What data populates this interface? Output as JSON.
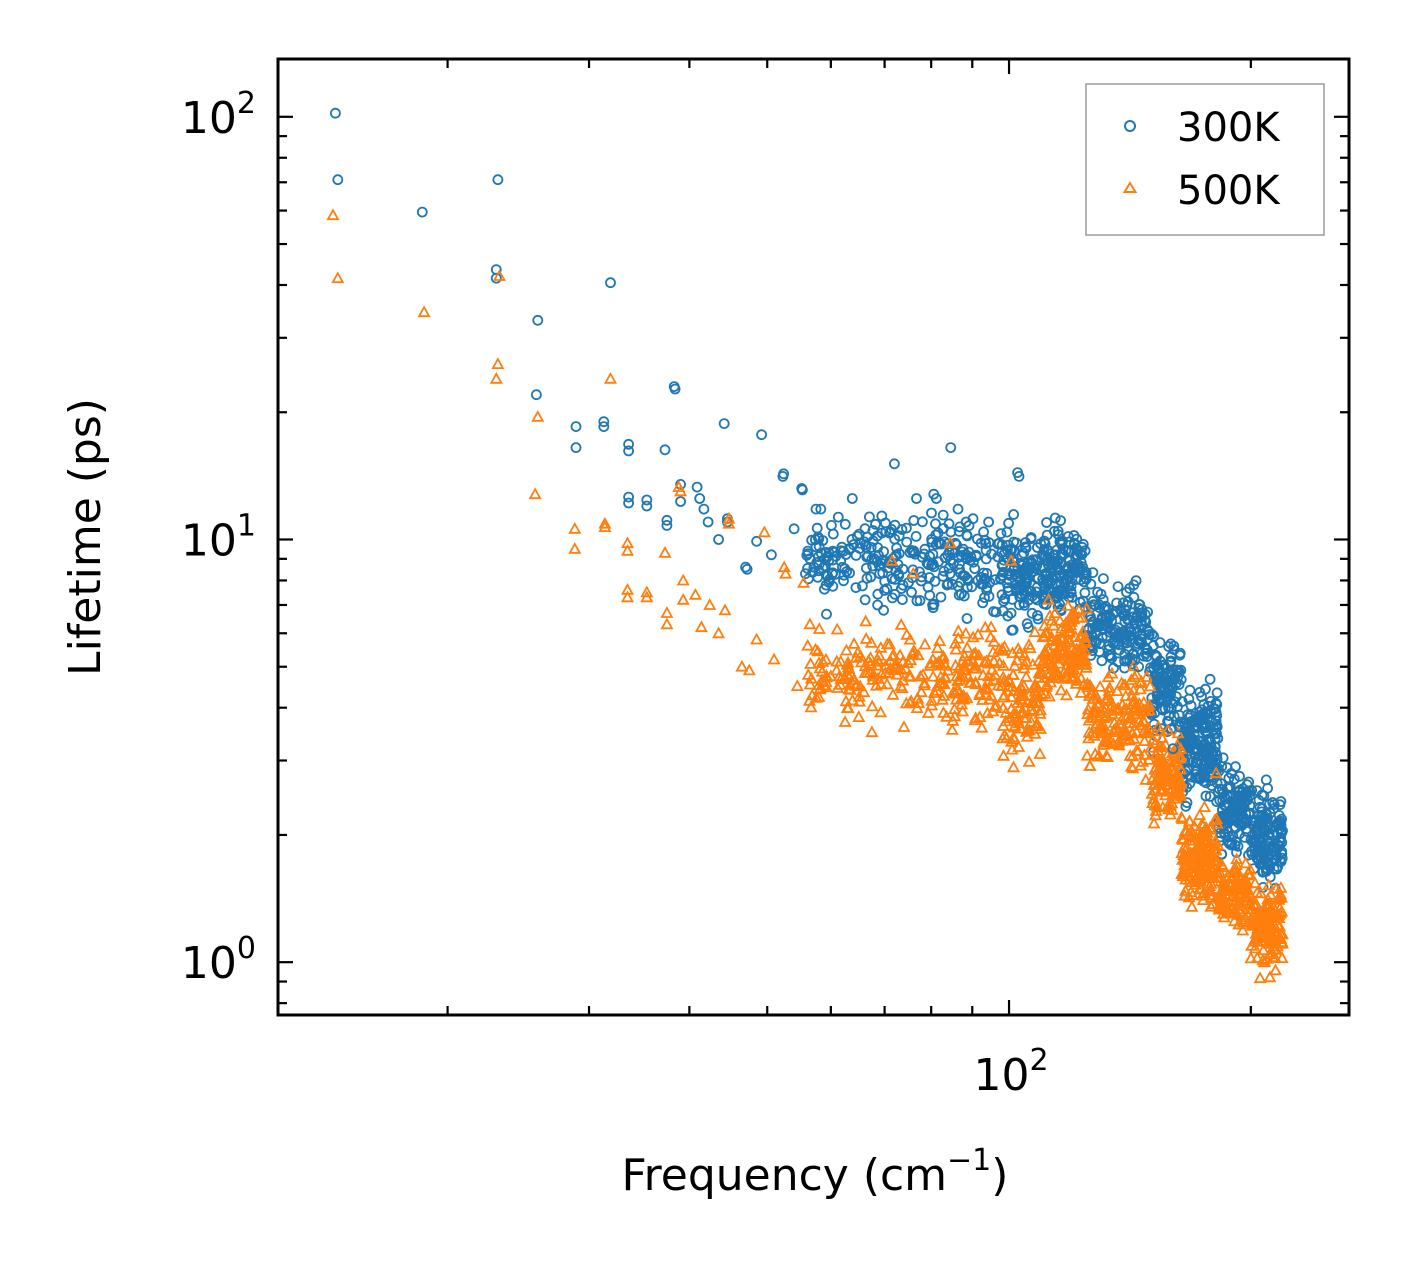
{
  "chart_data": {
    "type": "scatter",
    "xscale": "log",
    "yscale": "log",
    "xlim": [
      12.3,
      265
    ],
    "ylim": [
      0.75,
      137
    ],
    "xlabel": "Frequency (cm",
    "xlabel_sup": "−1",
    "xlabel_end": ")",
    "ylabel": "Lifetime (ps)",
    "x_major_ticks": [
      {
        "value": 100,
        "base": "10",
        "exp": "2"
      }
    ],
    "x_minor_ticks": [
      20,
      30,
      40,
      50,
      60,
      70,
      80,
      90,
      200
    ],
    "y_major_ticks": [
      {
        "value": 1,
        "base": "10",
        "exp": "0"
      },
      {
        "value": 10,
        "base": "10",
        "exp": "1"
      },
      {
        "value": 100,
        "base": "10",
        "exp": "2"
      }
    ],
    "y_minor_ticks": [
      0.8,
      0.9,
      2,
      3,
      4,
      5,
      6,
      7,
      8,
      9,
      20,
      30,
      40,
      50,
      60,
      70,
      80,
      90
    ],
    "legend": {
      "position": "upper right"
    },
    "series": [
      {
        "name": "300K",
        "marker": "circle",
        "color": "#1f77b4",
        "points": [
          [
            14.5,
            102
          ],
          [
            14.6,
            71
          ],
          [
            18.6,
            59.5
          ],
          [
            23.1,
            71
          ],
          [
            23.0,
            43.5
          ],
          [
            23.0,
            41.5
          ],
          [
            25.9,
            33
          ],
          [
            25.8,
            22
          ],
          [
            28.9,
            18.5
          ],
          [
            28.9,
            16.5
          ],
          [
            31.3,
            18.5
          ],
          [
            31.3,
            19
          ],
          [
            31.9,
            40.5
          ],
          [
            33.6,
            16.8
          ],
          [
            33.6,
            16.2
          ],
          [
            33.6,
            12.6
          ],
          [
            33.6,
            12.2
          ],
          [
            35.4,
            12.4
          ],
          [
            35.4,
            12
          ],
          [
            37.3,
            16.3
          ],
          [
            37.5,
            11.1
          ],
          [
            37.5,
            10.8
          ],
          [
            38.3,
            23
          ],
          [
            38.4,
            22.7
          ],
          [
            39.0,
            13.5
          ],
          [
            39.0,
            12.3
          ],
          [
            40.9,
            13.3
          ],
          [
            41.2,
            12.5
          ],
          [
            41.7,
            11.8
          ],
          [
            42.2,
            11
          ],
          [
            43.5,
            10
          ],
          [
            44.2,
            18.8
          ],
          [
            44.6,
            11.2
          ],
          [
            44.6,
            11.0
          ],
          [
            47.0,
            8.6
          ],
          [
            47.2,
            8.5
          ],
          [
            48.5,
            9.9
          ],
          [
            49.2,
            17.7
          ],
          [
            50.6,
            9.2
          ],
          [
            52.3,
            14.1
          ],
          [
            52.4,
            14.3
          ],
          [
            54.0,
            10.6
          ],
          [
            55.2,
            13.2
          ],
          [
            55.3,
            13.1
          ],
          [
            55.8,
            8.3
          ],
          [
            56.5,
            9.0
          ],
          [
            57.5,
            11.8
          ],
          [
            58.3,
            11.8
          ],
          [
            60.1,
            10.8
          ],
          [
            61.3,
            11.3
          ],
          [
            62.8,
            8.4
          ],
          [
            63.8,
            12.5
          ],
          [
            66.2,
            7.2
          ],
          [
            68.6,
            7.0
          ],
          [
            69.8,
            6.8
          ],
          [
            72.0,
            15.1
          ],
          [
            73.0,
            10.2
          ],
          [
            75.6,
            7.5
          ],
          [
            76.7,
            12.5
          ],
          [
            80.6,
            12.8
          ],
          [
            81.2,
            12.5
          ],
          [
            84.6,
            16.5
          ],
          [
            86.4,
            11.8
          ],
          [
            90.2,
            11.2
          ],
          [
            94.3,
            11
          ],
          [
            97.6,
            8.1
          ],
          [
            100.7,
            9.5
          ],
          [
            102.5,
            14.4
          ],
          [
            102.9,
            14.1
          ],
          [
            114.2,
            9.2
          ],
          [
            118,
            8.5
          ],
          [
            128,
            7.0
          ],
          [
            132,
            6.5
          ],
          [
            140,
            5.8
          ],
          [
            145,
            5.0
          ],
          [
            148,
            5.5
          ],
          [
            153,
            4.6
          ],
          [
            158,
            4.0
          ],
          [
            160,
            3.2
          ],
          [
            163,
            3.6
          ],
          [
            168,
            4.4
          ],
          [
            170,
            3.3
          ],
          [
            174,
            3.2
          ],
          [
            178,
            3.0
          ],
          [
            181,
            4.1
          ],
          [
            181,
            3.9
          ],
          [
            184,
            2.9
          ],
          [
            188,
            2.6
          ],
          [
            191,
            2.4
          ],
          [
            196,
            2.2
          ],
          [
            202,
            2.1
          ],
          [
            208,
            2.2
          ],
          [
            213,
            2.0
          ],
          [
            218,
            2.4
          ]
        ]
      },
      {
        "name": "500K",
        "marker": "triangle",
        "color": "#ff7f0e",
        "points": [
          [
            14.4,
            58.5
          ],
          [
            14.6,
            41.5
          ],
          [
            18.7,
            34.5
          ],
          [
            23.1,
            26
          ],
          [
            23.0,
            24
          ],
          [
            23.2,
            42
          ],
          [
            25.7,
            12.8
          ],
          [
            25.9,
            19.5
          ],
          [
            28.8,
            10.6
          ],
          [
            28.8,
            9.5
          ],
          [
            31.4,
            10.9
          ],
          [
            31.4,
            10.7
          ],
          [
            31.9,
            24
          ],
          [
            33.5,
            9.8
          ],
          [
            33.5,
            9.4
          ],
          [
            33.5,
            7.6
          ],
          [
            33.5,
            7.3
          ],
          [
            35.4,
            7.5
          ],
          [
            35.4,
            7.3
          ],
          [
            37.3,
            9.3
          ],
          [
            37.5,
            6.7
          ],
          [
            37.5,
            6.3
          ],
          [
            38.8,
            13.3
          ],
          [
            39.0,
            13
          ],
          [
            39.3,
            8.0
          ],
          [
            39.3,
            7.2
          ],
          [
            40.7,
            7.4
          ],
          [
            41.4,
            6.2
          ],
          [
            42.4,
            7.0
          ],
          [
            43.5,
            6.0
          ],
          [
            44.3,
            6.8
          ],
          [
            44.8,
            11.2
          ],
          [
            44.8,
            10.9
          ],
          [
            46.5,
            5.0
          ],
          [
            47.5,
            4.9
          ],
          [
            48.5,
            5.8
          ],
          [
            49.6,
            10.4
          ],
          [
            51.0,
            5.2
          ],
          [
            52.5,
            8.6
          ],
          [
            52.7,
            8.3
          ],
          [
            54.5,
            4.5
          ],
          [
            55.5,
            7.9
          ],
          [
            56.5,
            6.3
          ],
          [
            58.0,
            5.1
          ],
          [
            59.2,
            4.6
          ],
          [
            61.0,
            4.9
          ],
          [
            62.5,
            3.7
          ],
          [
            65.0,
            3.8
          ],
          [
            67.5,
            3.5
          ],
          [
            69.2,
            3.9
          ],
          [
            71.5,
            8.9
          ],
          [
            74.0,
            3.6
          ],
          [
            76.0,
            8.3
          ],
          [
            80.4,
            5.2
          ],
          [
            84.5,
            9.8
          ],
          [
            88,
            5.0
          ],
          [
            92,
            3.8
          ],
          [
            95,
            6.2
          ],
          [
            98,
            5.5
          ],
          [
            100.6,
            8.9
          ],
          [
            112,
            7.2
          ],
          [
            120,
            5.0
          ],
          [
            128,
            3.9
          ],
          [
            135,
            3.5
          ],
          [
            142,
            2.9
          ],
          [
            148,
            2.7
          ],
          [
            153,
            2.7
          ],
          [
            158,
            2.3
          ],
          [
            160,
            2.5
          ],
          [
            164,
            2.2
          ],
          [
            167,
            2.0
          ],
          [
            170,
            2.1
          ],
          [
            174,
            2.0
          ],
          [
            178,
            1.8
          ],
          [
            181,
            2.8
          ],
          [
            184,
            1.7
          ],
          [
            188,
            1.6
          ],
          [
            192,
            1.5
          ],
          [
            198,
            1.4
          ],
          [
            205,
            1.3
          ],
          [
            212,
            1.3
          ],
          [
            218,
            1.5
          ]
        ]
      }
    ],
    "bands": [
      {
        "series": 0,
        "seed": 7,
        "segments": [
          {
            "x": [
              56,
              78
            ],
            "center": 8.8,
            "spread": 0.28,
            "n": 150
          },
          {
            "x": [
              78,
              98
            ],
            "center": 8.7,
            "spread": 0.3,
            "n": 120
          },
          {
            "x": [
              98,
              110
            ],
            "center": 8.3,
            "spread": 0.34,
            "n": 110
          },
          {
            "x": [
              110,
              125
            ],
            "center": 8.5,
            "spread": 0.3,
            "n": 150
          },
          {
            "x": [
              125,
              150
            ],
            "center": 6.2,
            "spread": 0.3,
            "n": 160
          },
          {
            "x": [
              150,
              164
            ],
            "center": 4.5,
            "spread": 0.34,
            "n": 110
          },
          {
            "x": [
              164,
              182
            ],
            "center": 3.3,
            "spread": 0.36,
            "n": 180
          },
          {
            "x": [
              182,
              200
            ],
            "center": 2.3,
            "spread": 0.28,
            "n": 130
          },
          {
            "x": [
              200,
              219
            ],
            "center": 2.0,
            "spread": 0.3,
            "n": 130
          }
        ]
      },
      {
        "series": 1,
        "seed": 13,
        "segments": [
          {
            "x": [
              56,
              78
            ],
            "center": 4.9,
            "spread": 0.25,
            "n": 130
          },
          {
            "x": [
              78,
              98
            ],
            "center": 4.7,
            "spread": 0.3,
            "n": 120
          },
          {
            "x": [
              98,
              110
            ],
            "center": 4.2,
            "spread": 0.38,
            "n": 110
          },
          {
            "x": [
              110,
              125
            ],
            "center": 5.4,
            "spread": 0.3,
            "n": 150
          },
          {
            "x": [
              125,
              150
            ],
            "center": 3.8,
            "spread": 0.3,
            "n": 160
          },
          {
            "x": [
              150,
              164
            ],
            "center": 2.8,
            "spread": 0.3,
            "n": 110
          },
          {
            "x": [
              164,
              182
            ],
            "center": 1.75,
            "spread": 0.32,
            "n": 170
          },
          {
            "x": [
              182,
              200
            ],
            "center": 1.45,
            "spread": 0.22,
            "n": 120
          },
          {
            "x": [
              200,
              219
            ],
            "center": 1.2,
            "spread": 0.26,
            "n": 130
          }
        ]
      }
    ]
  }
}
